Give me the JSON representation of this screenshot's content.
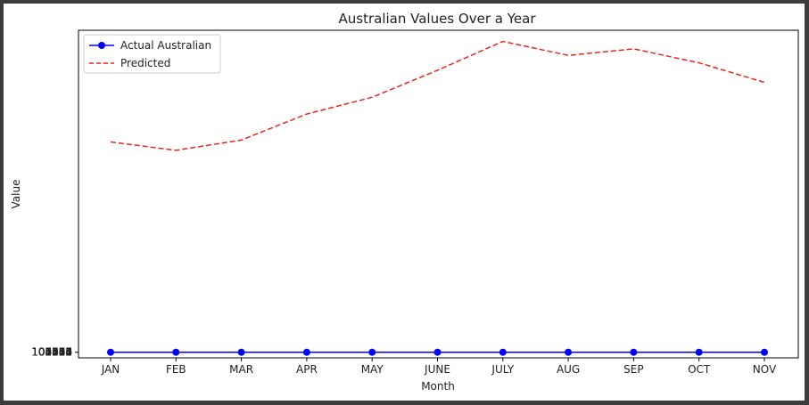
{
  "chart_data": {
    "type": "line",
    "title": "Australian Values Over a Year",
    "xlabel": "Month",
    "ylabel": "Value",
    "categories": [
      "JAN",
      "FEB",
      "MAR",
      "APR",
      "MAY",
      "JUNE",
      "JULY",
      "AUG",
      "SEP",
      "OCT",
      "NOV"
    ],
    "series": [
      {
        "name": "Actual Australian",
        "style": "solid-marker",
        "color": "#0000ff",
        "values": [
          0,
          0,
          0,
          0,
          0,
          0,
          0,
          0,
          0,
          0,
          0
        ]
      },
      {
        "name": "Predicted",
        "style": "dashed",
        "color": "#e8261e",
        "values": [
          226,
          217,
          228,
          256,
          274,
          303,
          334,
          319,
          326,
          311,
          290
        ]
      }
    ],
    "ylim": [
      -6,
      346
    ],
    "y_tick_labels_overlapping": [
      "100000",
      "101111",
      "102222",
      "103333",
      "104444",
      "105555",
      "106666",
      "107777",
      "108888"
    ],
    "legend_placement": "top-left",
    "grid": false
  }
}
